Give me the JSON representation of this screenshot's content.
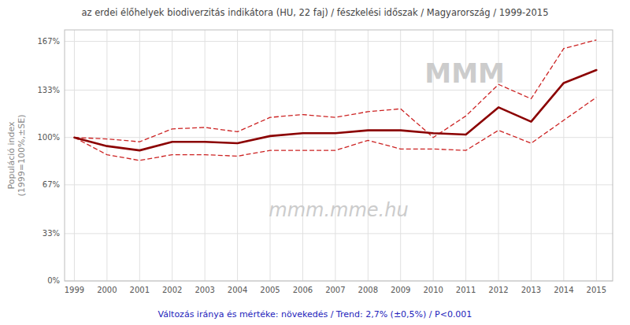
{
  "chart_data": {
    "type": "line",
    "title": "az erdei élőhelyek biodiverzitás indikátora (HU, 22 faj) / fészkelési időszak / Magyarország / 1999-2015",
    "ylabel": "Populáció index\n(1999=100%,±SE)",
    "annotations": [
      {
        "text": "Változás iránya és mértéke: növekedés / Trend: 2,7% (±0,5%) / P<0.001",
        "color": "#2222bb"
      },
      {
        "text": "mmm.mme.hu",
        "color": "#cccccc"
      },
      {
        "text": "MMM",
        "color": "#cccccc"
      }
    ],
    "x": [
      1999,
      2000,
      2001,
      2002,
      2003,
      2004,
      2005,
      2006,
      2007,
      2008,
      2009,
      2010,
      2011,
      2012,
      2013,
      2014,
      2015
    ],
    "series": [
      {
        "color": "#cc2222",
        "line_style": "dashed",
        "values": [
          100,
          99,
          97,
          106,
          107,
          104,
          114,
          116,
          114,
          118,
          120,
          100,
          115,
          137,
          127,
          162,
          168
        ]
      },
      {
        "color": "#cc2222",
        "line_style": "dashed",
        "values": [
          100,
          88,
          84,
          88,
          88,
          87,
          91,
          91,
          91,
          98,
          92,
          92,
          91,
          105,
          96,
          112,
          128
        ]
      },
      {
        "color": "#8b0000",
        "line_style": "solid",
        "values": [
          100,
          94,
          91,
          97,
          97,
          96,
          101,
          103,
          103,
          105,
          105,
          103,
          102,
          121,
          111,
          138,
          147
        ]
      }
    ],
    "xlim": [
      1998.7,
      2015.5
    ],
    "xticks": [
      1999,
      2000,
      2001,
      2002,
      2003,
      2004,
      2005,
      2006,
      2007,
      2008,
      2009,
      2010,
      2011,
      2012,
      2013,
      2014,
      2015
    ],
    "ylim": [
      0,
      175
    ],
    "yticks": [
      {
        "value": 0,
        "label": "0%"
      },
      {
        "value": 33,
        "label": "33%"
      },
      {
        "value": 67,
        "label": "67%"
      },
      {
        "value": 100,
        "label": "100%"
      },
      {
        "value": 133,
        "label": "133%"
      },
      {
        "value": 167,
        "label": "167%"
      }
    ],
    "grid": true
  }
}
